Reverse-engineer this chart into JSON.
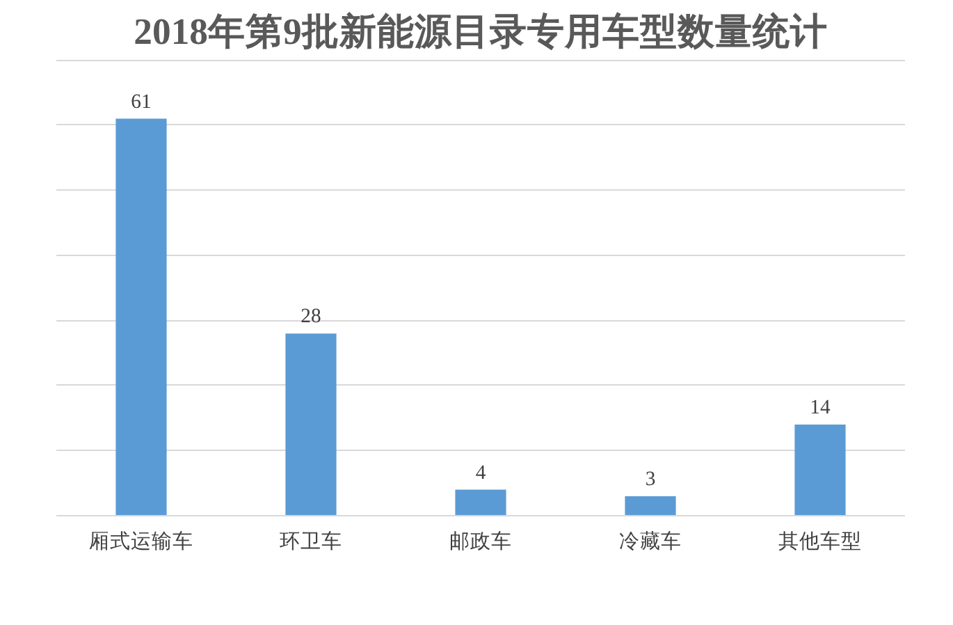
{
  "chart_data": {
    "type": "bar",
    "title": "2018年第9批新能源目录专用车型数量统计",
    "categories": [
      "厢式运输车",
      "环卫车",
      "邮政车",
      "冷藏车",
      "其他车型"
    ],
    "values": [
      61,
      28,
      4,
      3,
      14
    ],
    "color": "#5b9bd5",
    "tick_labels": "x",
    "grid": "y",
    "data_labels": true
  }
}
